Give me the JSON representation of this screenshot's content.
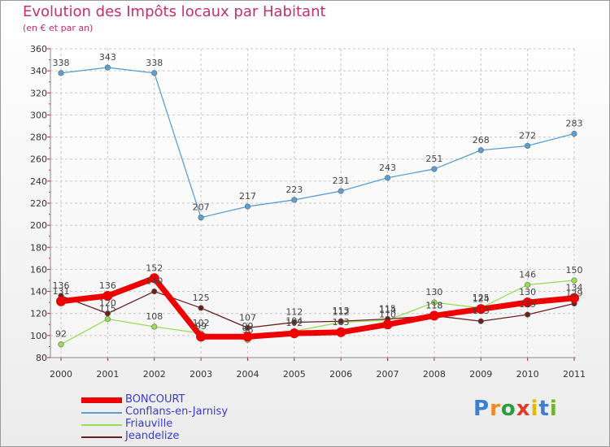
{
  "header": {
    "title": "Evolution des Impôts locaux par Habitant",
    "subtitle": "(en € et par an)"
  },
  "chart_data": {
    "type": "line",
    "title": "Evolution des Impôts locaux par Habitant",
    "subtitle": "(en € et par an)",
    "xlabel": "",
    "ylabel": "",
    "categories": [
      "2000",
      "2001",
      "2002",
      "2003",
      "2004",
      "2005",
      "2006",
      "2007",
      "2008",
      "2009",
      "2010",
      "2011"
    ],
    "ylim": [
      80,
      360
    ],
    "yticks": [
      "80",
      "100",
      "120",
      "140",
      "160",
      "180",
      "200",
      "220",
      "240",
      "260",
      "280",
      "300",
      "320",
      "340",
      "360"
    ],
    "grid": true,
    "legend_position": "bottom-left",
    "series": [
      {
        "name": "Conflans-en-Jarnisy",
        "color": "#5a9fd4",
        "values": [
          338,
          343,
          338,
          207,
          217,
          223,
          231,
          243,
          251,
          268,
          272,
          283
        ]
      },
      {
        "name": "Friauville",
        "color": "#99dd55",
        "values": [
          92,
          115,
          108,
          102,
          96,
          104,
          112,
          114,
          130,
          125,
          146,
          150
        ]
      },
      {
        "name": "Jeandelize",
        "color": "#6b2020",
        "values": [
          136,
          120,
          140,
          125,
          107,
          112,
          113,
          115,
          118,
          113,
          119,
          129
        ]
      },
      {
        "name": "BONCOURT",
        "color": "#ee0000",
        "values": [
          131,
          136,
          152,
          99,
          99,
          102,
          103,
          110,
          118,
          124,
          130,
          134
        ]
      }
    ],
    "data_labels": [
      [
        "338",
        "343",
        "338",
        "207",
        "217",
        "223",
        "231",
        "243",
        "251",
        "268",
        "272",
        "283"
      ],
      [
        "92",
        "115",
        "108",
        "102",
        "96",
        "104",
        "112",
        "114",
        "130",
        "125",
        "146",
        "150"
      ],
      [
        "136",
        "120",
        "140",
        "125",
        "107",
        "112",
        "113",
        "115",
        "118",
        "113",
        "119",
        "129"
      ],
      [
        "131",
        "136",
        "152",
        "99",
        "99",
        "102",
        "103",
        "110",
        "118",
        "124",
        "130",
        "134"
      ]
    ]
  },
  "legend": {
    "items": [
      {
        "label": "BONCOURT",
        "color": "#ee0000"
      },
      {
        "label": "Conflans-en-Jarnisy",
        "color": "#5a9fd4"
      },
      {
        "label": "Friauville",
        "color": "#99dd55"
      },
      {
        "label": "Jeandelize",
        "color": "#6b2020"
      }
    ]
  },
  "logo": {
    "text": "Proxiti",
    "colors": [
      "#3b7fd0",
      "#f08a1c",
      "#2c9c3c",
      "#e03a2a",
      "#e6b800",
      "#3b7fd0",
      "#6fb52c"
    ]
  }
}
